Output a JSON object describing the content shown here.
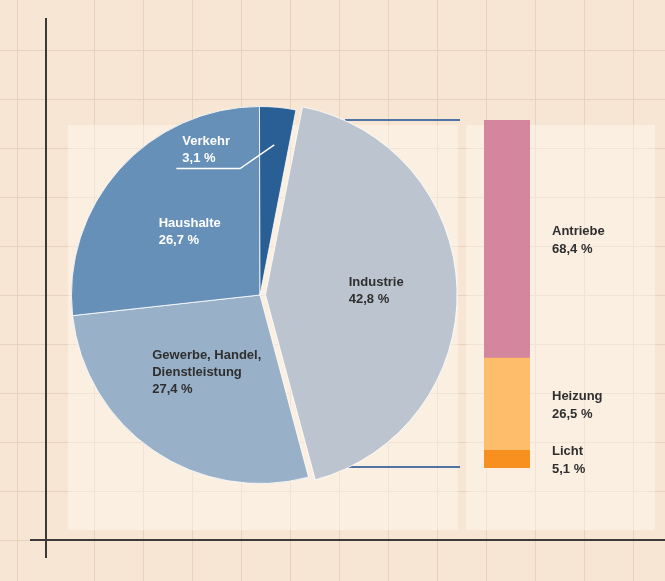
{
  "chart_data": [
    {
      "type": "pie",
      "categories": [
        "Industrie",
        "Gewerbe, Handel, Dienstleistung",
        "Haushalte",
        "Verkehr"
      ],
      "values": [
        42.8,
        27.4,
        26.7,
        3.1
      ],
      "value_labels": [
        "42,8 %",
        "27,4 %",
        "26,7 %",
        "3,1 %"
      ],
      "colors": [
        "#bcc5cf",
        "#98b0c8",
        "#6690b8",
        "#2a5f95"
      ],
      "data_labels": true
    },
    {
      "type": "bar",
      "stacked": true,
      "categories": [
        null
      ],
      "series": [
        {
          "name": "Antriebe",
          "color": "#d4869f",
          "values": [
            68.4
          ],
          "value_labels": [
            "68,4 %"
          ]
        },
        {
          "name": "Heizung",
          "color": "#fdbd6a",
          "values": [
            26.5
          ],
          "value_labels": [
            "26,5 %"
          ]
        },
        {
          "name": "Licht",
          "color": "#f7901e",
          "values": [
            5.1
          ],
          "value_labels": [
            "5,1 %"
          ]
        }
      ],
      "ylim": [
        0,
        100
      ],
      "data_labels": true,
      "tick_labels": false,
      "grid": false
    }
  ]
}
